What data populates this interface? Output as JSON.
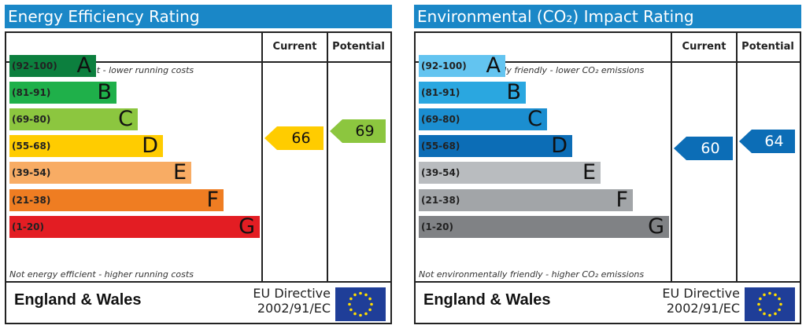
{
  "chart_data": [
    {
      "type": "bar",
      "title": "Energy Efficiency Rating",
      "columns": [
        "Current",
        "Potential"
      ],
      "top_note": "Very energy efficient - lower running costs",
      "bottom_note": "Not energy efficient - higher running costs",
      "bands": [
        {
          "range": "(92-100)",
          "letter": "A",
          "color": "#0c7f3e",
          "order": 1
        },
        {
          "range": "(81-91)",
          "letter": "B",
          "color": "#1fb04a",
          "order": 2
        },
        {
          "range": "(69-80)",
          "letter": "C",
          "color": "#8cc63f",
          "order": 3
        },
        {
          "range": "(55-68)",
          "letter": "D",
          "color": "#ffcc00",
          "order": 4
        },
        {
          "range": "(39-54)",
          "letter": "E",
          "color": "#f8ac64",
          "order": 5
        },
        {
          "range": "(21-38)",
          "letter": "F",
          "color": "#ef7d22",
          "order": 6
        },
        {
          "range": "(1-20)",
          "letter": "G",
          "color": "#e31d23",
          "order": 7
        }
      ],
      "current": {
        "value": "66",
        "band": "D",
        "color": "#ffcc00"
      },
      "potential": {
        "value": "69",
        "band": "C",
        "color": "#8cc63f"
      },
      "footer": {
        "region": "England & Wales",
        "directive_line1": "EU Directive",
        "directive_line2": "2002/91/EC"
      }
    },
    {
      "type": "bar",
      "title": "Environmental (CO₂) Impact Rating",
      "columns": [
        "Current",
        "Potential"
      ],
      "top_note": "Very environmentally friendly - lower CO₂ emissions",
      "bottom_note": "Not environmentally friendly - higher CO₂ emissions",
      "bands": [
        {
          "range": "(92-100)",
          "letter": "A",
          "color": "#63c4f0",
          "order": 1
        },
        {
          "range": "(81-91)",
          "letter": "B",
          "color": "#2aa7e0",
          "order": 2
        },
        {
          "range": "(69-80)",
          "letter": "C",
          "color": "#1b8ed0",
          "order": 3
        },
        {
          "range": "(55-68)",
          "letter": "D",
          "color": "#0c6db6",
          "order": 4
        },
        {
          "range": "(39-54)",
          "letter": "E",
          "color": "#b9bcbf",
          "order": 5
        },
        {
          "range": "(21-38)",
          "letter": "F",
          "color": "#a2a5a8",
          "order": 6
        },
        {
          "range": "(1-20)",
          "letter": "G",
          "color": "#808285",
          "order": 7
        }
      ],
      "current": {
        "value": "60",
        "band": "D",
        "color": "#0c6db6"
      },
      "potential": {
        "value": "64",
        "band": "D",
        "color": "#0c6db6"
      },
      "footer": {
        "region": "England & Wales",
        "directive_line1": "EU Directive",
        "directive_line2": "2002/91/EC"
      }
    }
  ]
}
